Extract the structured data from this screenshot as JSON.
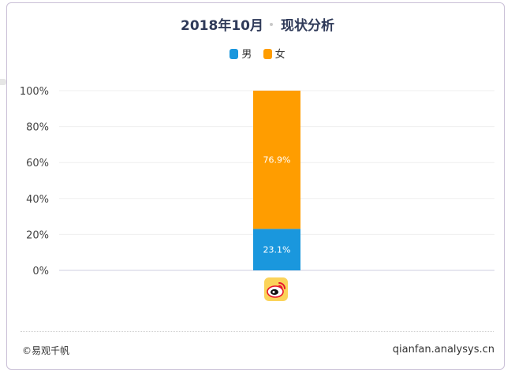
{
  "chart_data": {
    "type": "bar",
    "stacked": true,
    "title_date": "2018年10月",
    "title_topic": "现状分析",
    "categories": [
      ""
    ],
    "series": [
      {
        "name": "男",
        "values": [
          23.1
        ],
        "color": "#1a97dd"
      },
      {
        "name": "女",
        "values": [
          76.9
        ],
        "color": "#ff9d00"
      }
    ],
    "data_labels": [
      "23.1%",
      "76.9%"
    ],
    "yticks": [
      "0%",
      "20%",
      "40%",
      "60%",
      "80%",
      "100%"
    ],
    "ylim": [
      0,
      100
    ],
    "grid": true,
    "legend": "top-center"
  },
  "category_icon": "weibo-logo-icon",
  "footer": {
    "copyright": "©易观千帆",
    "site": "qianfan.analysys.cn"
  }
}
